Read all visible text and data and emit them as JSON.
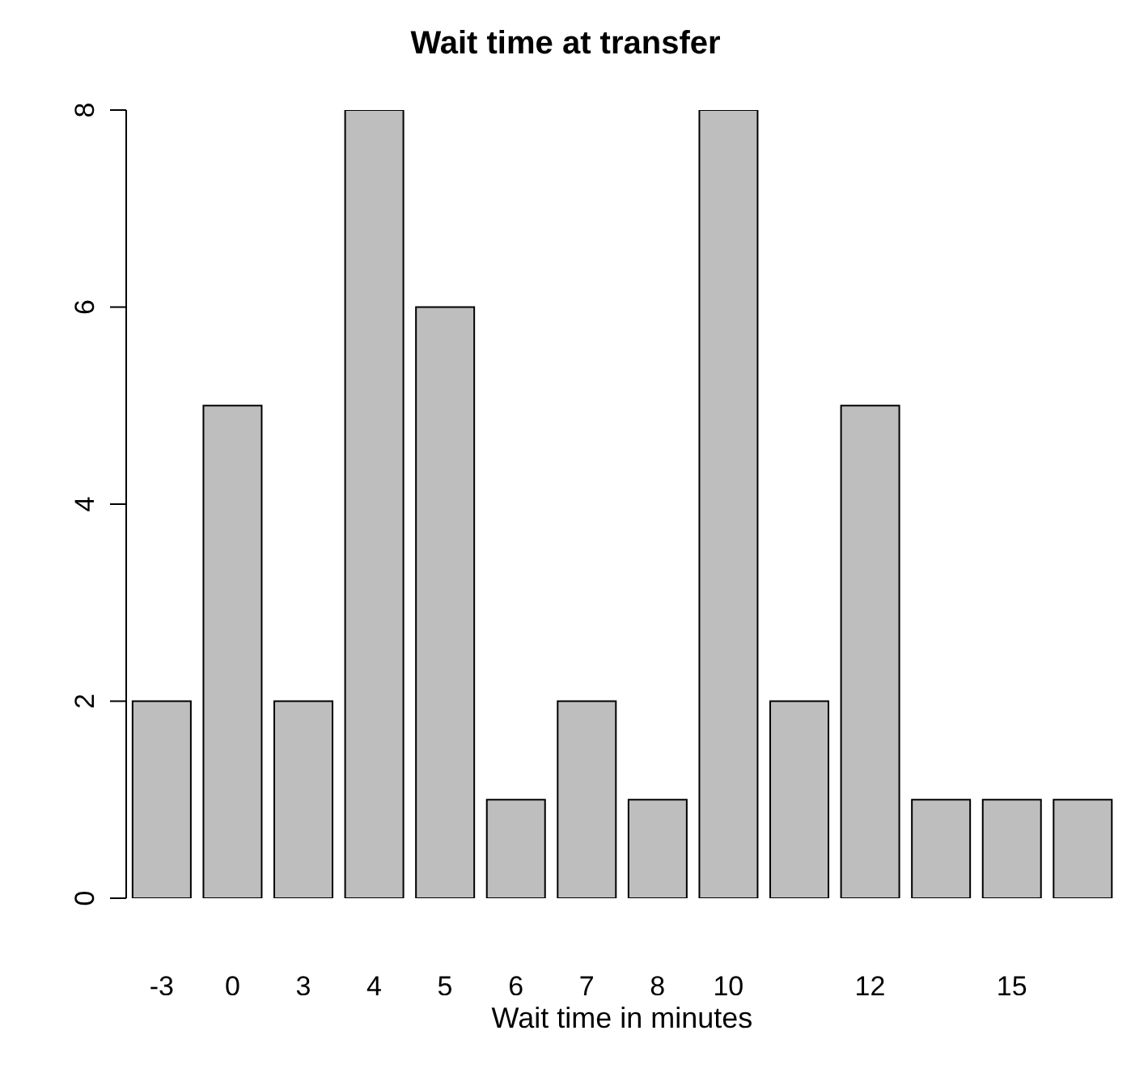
{
  "chart_data": {
    "type": "bar",
    "title": "Wait time at transfer",
    "xlabel": "Wait time in minutes",
    "categories": [
      "-3",
      "0",
      "3",
      "4",
      "5",
      "6",
      "7",
      "8",
      "10",
      null,
      "12",
      null,
      "15",
      null
    ],
    "values": [
      2,
      5,
      2,
      8,
      6,
      1,
      2,
      1,
      8,
      2,
      5,
      1,
      1,
      1
    ],
    "color": "#bebebe",
    "ylim": [
      0,
      8
    ],
    "yticks": [
      0,
      2,
      4,
      6,
      8
    ],
    "grid": false,
    "legend": false
  }
}
